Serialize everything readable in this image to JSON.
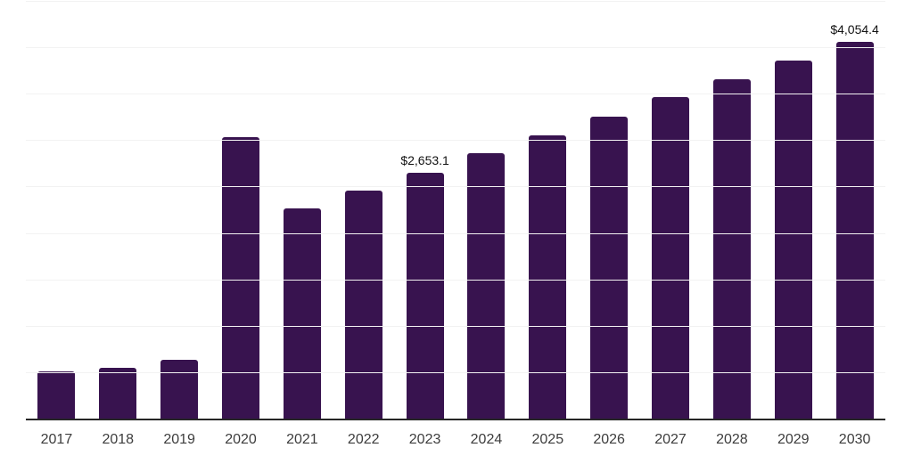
{
  "chart_data": {
    "type": "bar",
    "title": "",
    "xlabel": "",
    "ylabel": "",
    "legend": "none",
    "grid": true,
    "grid_step": 500,
    "ylim": [
      0,
      4500
    ],
    "categories": [
      "2017",
      "2018",
      "2019",
      "2020",
      "2021",
      "2022",
      "2023",
      "2024",
      "2025",
      "2026",
      "2027",
      "2028",
      "2029",
      "2030"
    ],
    "values": [
      505,
      550,
      635,
      3035,
      2265,
      2455,
      2653.1,
      2860,
      3050,
      3255,
      3460,
      3660,
      3855,
      4054.4
    ],
    "data_labels": [
      "",
      "",
      "",
      "",
      "",
      "",
      "$2,653.1",
      "",
      "",
      "",
      "",
      "",
      "",
      "$4,054.4"
    ],
    "colors": {
      "bar": "#38134F",
      "axis": "#262626",
      "gridline": "#f2f2f2",
      "value_label": "#111111",
      "tick_label": "#3d3d3d"
    }
  }
}
